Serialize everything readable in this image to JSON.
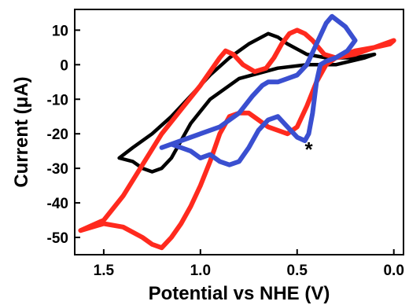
{
  "chart_data": {
    "type": "line",
    "title": "",
    "xlabel": "Potential vs NHE (V)",
    "ylabel": "Current (μA)",
    "xlim": [
      1.65,
      -0.05
    ],
    "ylim": [
      -55,
      16
    ],
    "x_reversed": true,
    "x_ticks": [
      1.5,
      1.0,
      0.5,
      0.0
    ],
    "x_tick_labels": [
      "1.5",
      "1.0",
      "0.5",
      "0.0"
    ],
    "y_ticks": [
      10,
      0,
      -10,
      -20,
      -30,
      -40,
      -50
    ],
    "y_tick_labels": [
      "10",
      "0",
      "-10",
      "-20",
      "-30",
      "-40",
      "-50"
    ],
    "grid": false,
    "legend": "none",
    "annotations": [
      {
        "text": "*",
        "x": 0.44,
        "y": -22
      }
    ],
    "series": [
      {
        "color": "#000000",
        "x": [
          1.42,
          1.35,
          1.25,
          1.15,
          1.05,
          0.95,
          0.85,
          0.75,
          0.65,
          0.6,
          0.55,
          0.45,
          0.35,
          0.2,
          0.1,
          0.15,
          0.3,
          0.45,
          0.6,
          0.8,
          0.95,
          1.05,
          1.1,
          1.15,
          1.2,
          1.25,
          1.3,
          1.35,
          1.42
        ],
        "y": [
          -27,
          -24,
          -20,
          -15,
          -9,
          -3,
          2,
          6,
          9,
          8,
          6,
          3,
          2,
          2,
          3,
          2,
          0,
          0,
          -1,
          -4,
          -10,
          -17,
          -22,
          -27,
          -30,
          -31,
          -30,
          -28,
          -27
        ]
      },
      {
        "color": "#ff2a1e",
        "x": [
          1.62,
          1.5,
          1.4,
          1.3,
          1.2,
          1.1,
          1.0,
          0.95,
          0.9,
          0.87,
          0.83,
          0.78,
          0.72,
          0.66,
          0.62,
          0.58,
          0.54,
          0.5,
          0.46,
          0.42,
          0.36,
          0.3,
          0.2,
          0.1,
          0.0,
          0.02,
          0.1,
          0.2,
          0.3,
          0.35,
          0.4,
          0.45,
          0.5,
          0.55,
          0.6,
          0.65,
          0.7,
          0.75,
          0.8,
          0.85,
          0.9,
          0.95,
          1.0,
          1.05,
          1.1,
          1.15,
          1.2,
          1.25,
          1.3,
          1.4,
          1.5,
          1.62
        ],
        "y": [
          -48,
          -45,
          -38,
          -29,
          -20,
          -13,
          -6,
          -2,
          2,
          4,
          3,
          0,
          -2,
          -1,
          2,
          6,
          9,
          10,
          9,
          7,
          3,
          2,
          3,
          5,
          7,
          6,
          5,
          4,
          2,
          0,
          -5,
          -12,
          -18,
          -20,
          -19,
          -18,
          -16,
          -14,
          -14,
          -15,
          -20,
          -28,
          -35,
          -41,
          -46,
          -50,
          -53,
          -52,
          -50,
          -47,
          -46,
          -48
        ]
      },
      {
        "color": "#3a4fd0",
        "x": [
          1.2,
          1.1,
          1.0,
          0.9,
          0.8,
          0.73,
          0.68,
          0.65,
          0.6,
          0.55,
          0.5,
          0.45,
          0.4,
          0.35,
          0.32,
          0.25,
          0.2,
          0.24,
          0.3,
          0.35,
          0.38,
          0.4,
          0.42,
          0.44,
          0.46,
          0.5,
          0.55,
          0.6,
          0.65,
          0.7,
          0.75,
          0.8,
          0.85,
          0.9,
          0.95,
          1.0,
          1.05,
          1.1,
          1.15,
          1.2
        ],
        "y": [
          -24,
          -22,
          -20,
          -18,
          -14,
          -9,
          -6,
          -5,
          -5,
          -4,
          -3,
          0,
          6,
          12,
          14,
          11,
          7,
          4,
          2,
          1,
          0,
          -5,
          -14,
          -20,
          -22,
          -21,
          -18,
          -15,
          -16,
          -19,
          -24,
          -28,
          -29,
          -28,
          -26,
          -27,
          -25,
          -24,
          -23,
          -24
        ]
      }
    ]
  }
}
